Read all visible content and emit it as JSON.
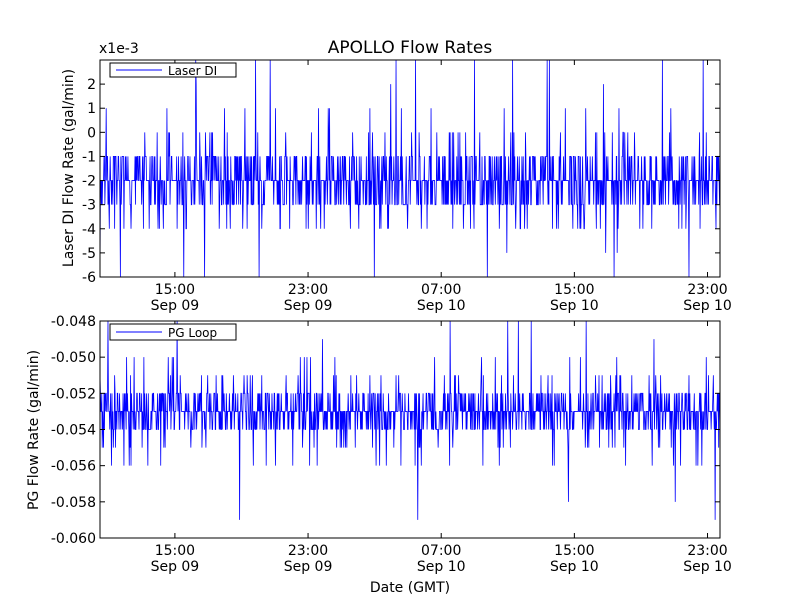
{
  "chart_data": [
    {
      "type": "line",
      "title": "APOLLO Flow Rates",
      "xlabel": "",
      "ylabel": "Laser DI Flow Rate (gal/min)",
      "y_multiplier": "x1e-3",
      "ylim": [
        -6,
        3
      ],
      "yticks": [
        2,
        1,
        0,
        -1,
        -2,
        -3,
        -4,
        -5,
        -6
      ],
      "ytick_labels": [
        "2",
        "1",
        "0",
        "-1",
        "-2",
        "-3",
        "-4",
        "-5",
        "-6"
      ],
      "xlim": [
        "2014-09-09 10:30",
        "2014-09-10 23:45"
      ],
      "xticks": [
        {
          "time": "15:00",
          "date": "Sep 09"
        },
        {
          "time": "23:00",
          "date": "Sep 09"
        },
        {
          "time": "07:00",
          "date": "Sep 10"
        },
        {
          "time": "15:00",
          "date": "Sep 10"
        },
        {
          "time": "23:00",
          "date": "Sep 10"
        }
      ],
      "legend": "top-left",
      "series": [
        {
          "name": "Laser DI",
          "color": "#0000ff",
          "baseline_range": [
            -3,
            -1
          ],
          "spike_max": 3,
          "spike_min": -6
        }
      ]
    },
    {
      "type": "line",
      "title": "",
      "xlabel": "Date (GMT)",
      "ylabel": "PG Flow Rate (gal/min)",
      "ylim": [
        -0.06,
        -0.048
      ],
      "yticks": [
        -0.048,
        -0.05,
        -0.052,
        -0.054,
        -0.056,
        -0.058,
        -0.06
      ],
      "ytick_labels": [
        "-0.048",
        "-0.050",
        "-0.052",
        "-0.054",
        "-0.056",
        "-0.058",
        "-0.060"
      ],
      "xlim": [
        "2014-09-09 10:30",
        "2014-09-10 23:45"
      ],
      "xticks": [
        {
          "time": "15:00",
          "date": "Sep 09"
        },
        {
          "time": "23:00",
          "date": "Sep 09"
        },
        {
          "time": "07:00",
          "date": "Sep 10"
        },
        {
          "time": "15:00",
          "date": "Sep 10"
        },
        {
          "time": "23:00",
          "date": "Sep 10"
        }
      ],
      "legend": "top-left",
      "series": [
        {
          "name": "PG Loop",
          "color": "#0000ff",
          "baseline_range": [
            -0.054,
            -0.052
          ],
          "spike_max": -0.048,
          "spike_min": -0.059
        }
      ]
    }
  ]
}
